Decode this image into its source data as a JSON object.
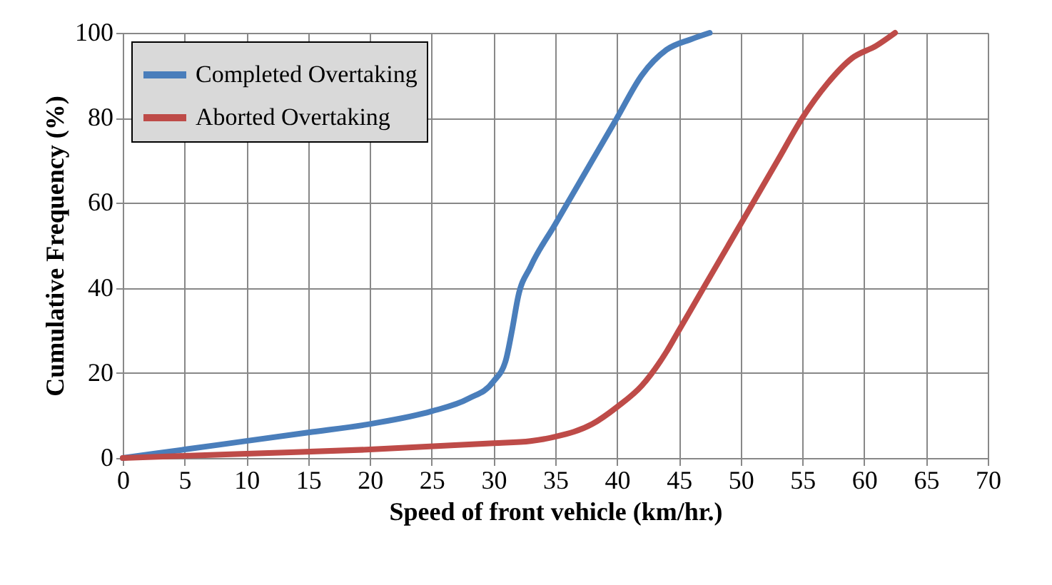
{
  "chart_data": {
    "type": "line",
    "xlabel": "Speed of front vehicle (km/hr.)",
    "ylabel": "Cumulative Frequency (%)",
    "xlim": [
      0,
      70
    ],
    "xticks": [
      0,
      5,
      10,
      15,
      20,
      25,
      30,
      35,
      40,
      45,
      50,
      55,
      60,
      65,
      70
    ],
    "ylim": [
      0,
      100
    ],
    "yticks": [
      0,
      20,
      40,
      60,
      80,
      100
    ],
    "grid": true,
    "legend": "top left",
    "marker": "none",
    "line_style": "solid",
    "series": [
      {
        "name": "Completed Overtaking",
        "color": "#4a7ebb",
        "x": [
          0,
          5,
          10,
          15,
          20,
          25,
          28,
          30,
          31,
          31.5,
          32,
          33,
          35,
          38,
          40,
          42,
          44,
          46,
          47.5
        ],
        "values": [
          0,
          2,
          4,
          6,
          8,
          11,
          14,
          18,
          23,
          30,
          38,
          45,
          55,
          70,
          80,
          90,
          96,
          98.5,
          100
        ]
      },
      {
        "name": "Aborted Overtaking",
        "color": "#be4b48",
        "x": [
          0,
          10,
          20,
          30,
          33,
          35,
          38,
          40,
          42,
          44,
          45,
          47,
          50,
          53,
          55,
          57,
          59,
          61,
          62.5
        ],
        "values": [
          0,
          1,
          2,
          3.5,
          4,
          5,
          8,
          12,
          17,
          25,
          30,
          40,
          55,
          70,
          80,
          88,
          94,
          97,
          100
        ]
      }
    ]
  }
}
